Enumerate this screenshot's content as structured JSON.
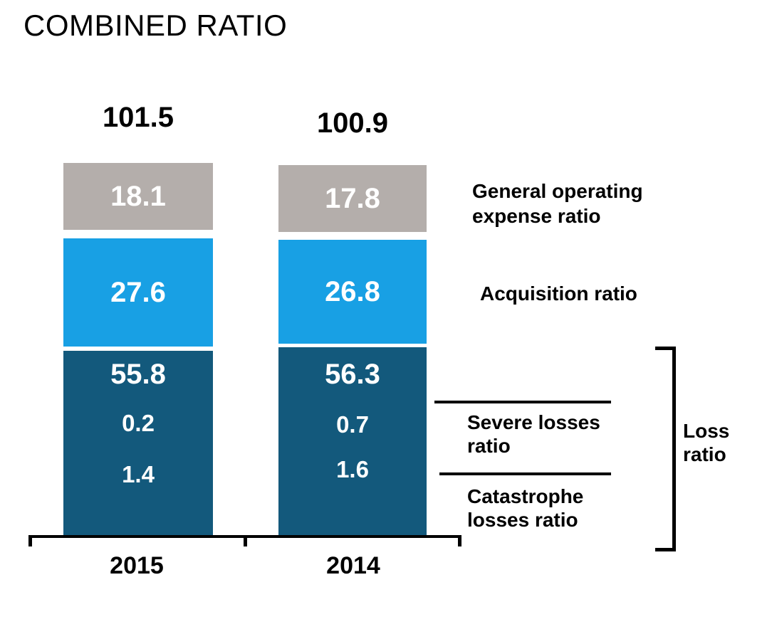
{
  "title": "COMBINED RATIO",
  "colors": {
    "gray": "#b4aeab",
    "lightblue": "#18a0e4",
    "darkblue": "#13597c",
    "ink": "#000000",
    "label-text": "#ffffff"
  },
  "bars": [
    {
      "year": "2015",
      "total": "101.5",
      "general_operating": "18.1",
      "acquisition": "27.6",
      "loss": "55.8",
      "severe": "0.2",
      "catastrophe": "1.4"
    },
    {
      "year": "2014",
      "total": "100.9",
      "general_operating": "17.8",
      "acquisition": "26.8",
      "loss": "56.3",
      "severe": "0.7",
      "catastrophe": "1.6"
    }
  ],
  "side_labels": {
    "general_operating": "General operating expense ratio",
    "acquisition": "Acquisition ratio",
    "severe": "Severe losses ratio",
    "catastrophe": "Catastrophe losses ratio",
    "loss": "Loss ratio"
  },
  "chart_data": {
    "type": "bar",
    "subtype": "stacked-column",
    "title": "COMBINED RATIO",
    "categories": [
      "2015",
      "2014"
    ],
    "totals": [
      101.5,
      100.9
    ],
    "series": [
      {
        "name": "General operating expense ratio",
        "values": [
          18.1,
          17.8
        ],
        "color": "#b4aeab"
      },
      {
        "name": "Acquisition ratio",
        "values": [
          27.6,
          26.8
        ],
        "color": "#18a0e4"
      },
      {
        "name": "Loss ratio",
        "values": [
          55.8,
          56.3
        ],
        "color": "#13597c",
        "of_which": [
          {
            "name": "Severe losses ratio",
            "values": [
              0.2,
              0.7
            ]
          },
          {
            "name": "Catastrophe losses ratio",
            "values": [
              1.4,
              1.6
            ]
          }
        ]
      }
    ],
    "value_labels": "inside-white-bold",
    "legend_position": "right",
    "grid": false,
    "axes": {
      "x_ticks": [
        "2015",
        "2014"
      ],
      "y_axis_visible": false
    }
  }
}
